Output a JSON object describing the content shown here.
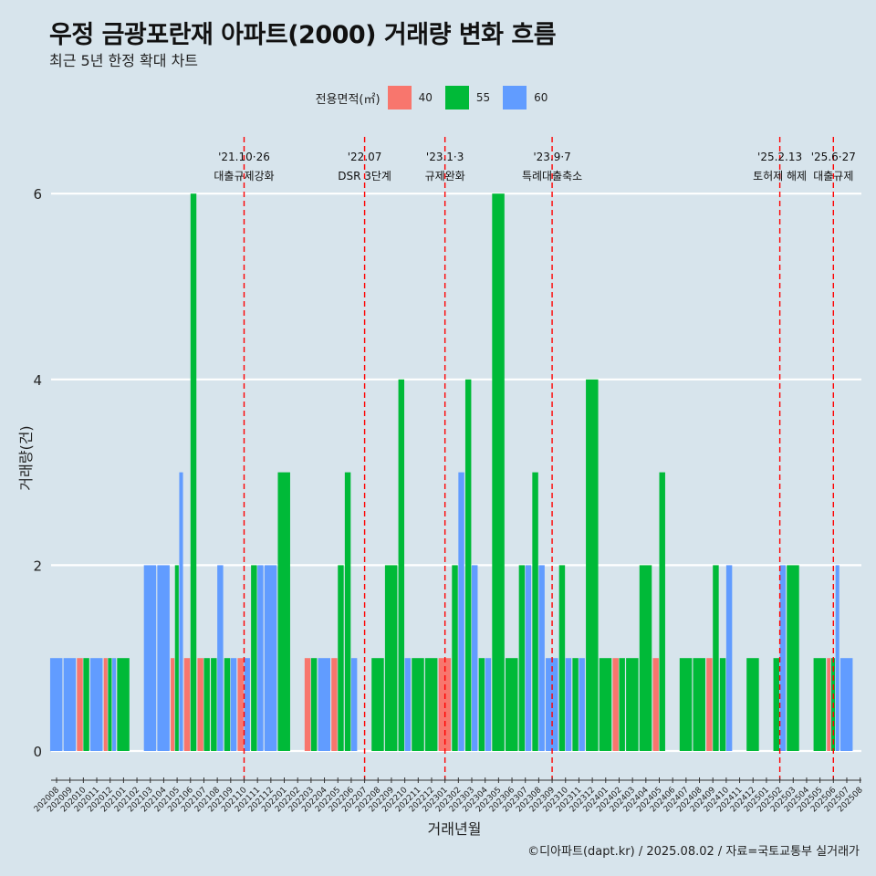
{
  "title": "우정 금광포란재 아파트(2000) 거래량 변화 흐름",
  "subtitle": "최근 5년 한정 확대 차트",
  "caption": "©디아파트(dapt.kr) / 2025.08.02 / 자료=국토교통부 실거래가",
  "legend": {
    "title": "전용면적(㎡)",
    "entries": [
      {
        "label": "40",
        "color": "#f8766d"
      },
      {
        "label": "55",
        "color": "#00ba38"
      },
      {
        "label": "60",
        "color": "#619cff"
      }
    ]
  },
  "chart_data": {
    "type": "bar",
    "xlabel": "거래년월",
    "ylabel": "거래량(건)",
    "ylim": [
      0,
      6.5
    ],
    "yticks": [
      0,
      2,
      4,
      6
    ],
    "grid": true,
    "categories": [
      "202008",
      "202009",
      "202010",
      "202011",
      "202012",
      "202101",
      "202102",
      "202103",
      "202104",
      "202105",
      "202106",
      "202107",
      "202108",
      "202109",
      "202110",
      "202111",
      "202112",
      "202201",
      "202202",
      "202203",
      "202204",
      "202205",
      "202206",
      "202207",
      "202208",
      "202209",
      "202210",
      "202211",
      "202212",
      "202301",
      "202302",
      "202303",
      "202304",
      "202305",
      "202306",
      "202307",
      "202308",
      "202309",
      "202310",
      "202311",
      "202312",
      "202401",
      "202402",
      "202403",
      "202404",
      "202405",
      "202406",
      "202407",
      "202408",
      "202409",
      "202410",
      "202411",
      "202412",
      "202501",
      "202502",
      "202503",
      "202504",
      "202505",
      "202506",
      "202507",
      "202508"
    ],
    "series": [
      {
        "name": "40",
        "color": "#f8766d",
        "values": [
          0,
          0,
          1,
          0,
          1,
          0,
          0,
          0,
          0,
          1,
          1,
          1,
          0,
          0,
          1,
          0,
          0,
          0,
          0,
          1,
          0,
          1,
          0,
          0,
          0,
          0,
          0,
          0,
          0,
          1,
          0,
          0,
          0,
          0,
          0,
          0,
          0,
          0,
          0,
          0,
          0,
          0,
          1,
          0,
          0,
          1,
          0,
          0,
          0,
          1,
          0,
          0,
          0,
          0,
          0,
          0,
          0,
          0,
          1,
          0,
          0
        ]
      },
      {
        "name": "55",
        "color": "#00ba38",
        "values": [
          0,
          0,
          1,
          0,
          1,
          1,
          0,
          0,
          0,
          2,
          6,
          1,
          1,
          1,
          0,
          2,
          0,
          3,
          0,
          1,
          0,
          2,
          3,
          0,
          1,
          2,
          4,
          1,
          1,
          0,
          2,
          4,
          1,
          6,
          1,
          2,
          3,
          0,
          2,
          1,
          4,
          1,
          1,
          1,
          2,
          3,
          0,
          1,
          1,
          2,
          1,
          0,
          1,
          0,
          1,
          2,
          0,
          1,
          1,
          0,
          0
        ]
      },
      {
        "name": "60",
        "color": "#619cff",
        "values": [
          1,
          1,
          0,
          1,
          1,
          0,
          0,
          2,
          2,
          3,
          0,
          0,
          2,
          1,
          1,
          2,
          2,
          0,
          0,
          0,
          1,
          0,
          1,
          0,
          0,
          0,
          1,
          0,
          0,
          0,
          3,
          2,
          1,
          0,
          0,
          2,
          2,
          1,
          1,
          1,
          0,
          0,
          0,
          0,
          0,
          0,
          0,
          0,
          0,
          0,
          2,
          0,
          0,
          0,
          2,
          0,
          0,
          0,
          2,
          1,
          0
        ]
      }
    ],
    "annotations": [
      {
        "month": "202110",
        "line1": "'21.10·26",
        "line2": "대출규제강화"
      },
      {
        "month": "202207",
        "line1": "'22.07",
        "line2": "DSR 3단계"
      },
      {
        "month": "202301",
        "line1": "'23.1·3",
        "line2": "규제완화"
      },
      {
        "month": "202309",
        "line1": "'23.9·7",
        "line2": "특례대출축소"
      },
      {
        "month": "202502",
        "line1": "'25.2.13",
        "line2": "토허제 해제"
      },
      {
        "month": "202506",
        "line1": "'25.6·27",
        "line2": "대출규제"
      }
    ]
  }
}
